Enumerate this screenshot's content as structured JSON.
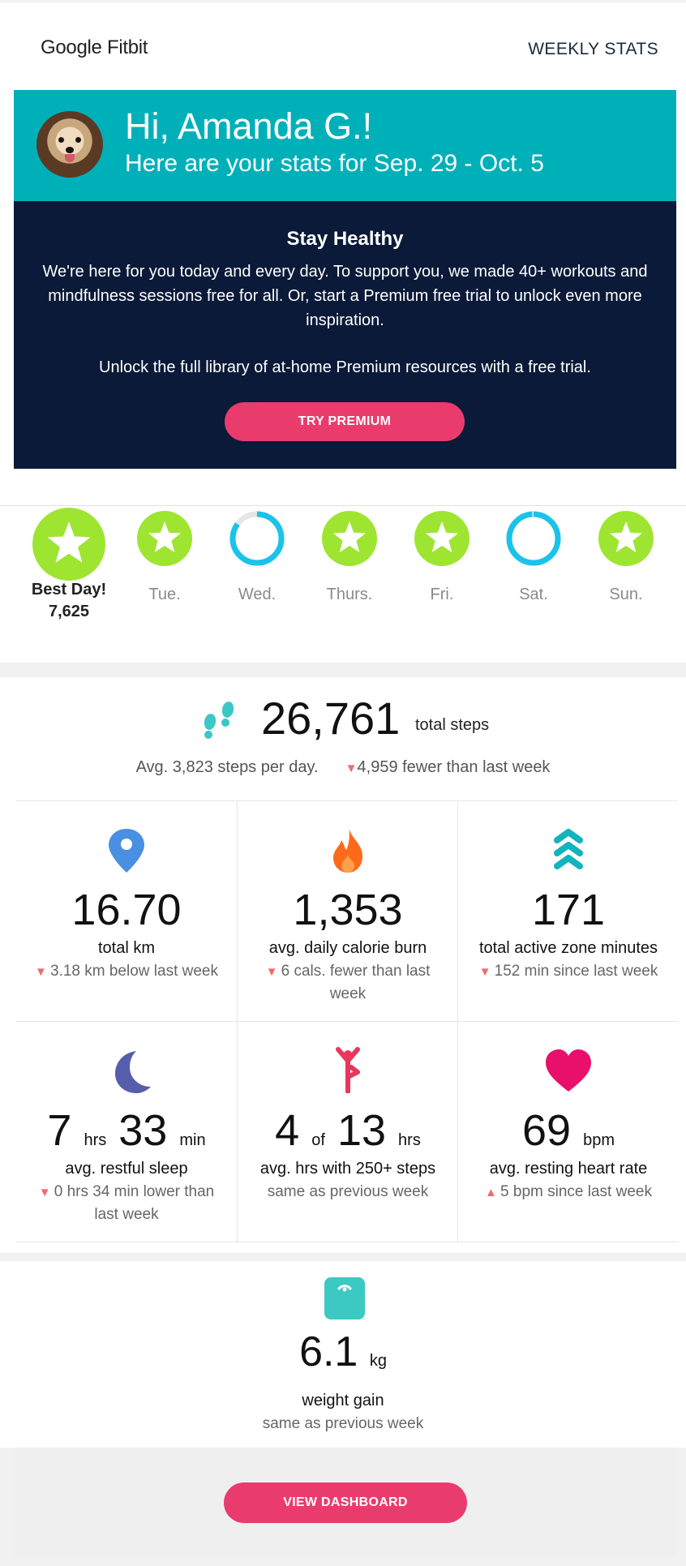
{
  "brand": "Google Fitbit",
  "header_link": "WEEKLY STATS",
  "greeting": "Hi, Amanda G.!",
  "subtitle": "Here are your stats for Sep. 29 - Oct. 5",
  "promo": {
    "title": "Stay Healthy",
    "text1": "We're here for you today and every day. To support you, we made 40+ workouts and mindfulness sessions free for all. Or, start a Premium free trial to unlock even more inspiration.",
    "text2": "Unlock the full library of at-home Premium resources with a free trial.",
    "button": "TRY PREMIUM"
  },
  "days": [
    {
      "label": "Best Day!",
      "value": "7,625",
      "status": "goal-met",
      "best": true
    },
    {
      "label": "Tue.",
      "status": "goal-met"
    },
    {
      "label": "Wed.",
      "status": "progress",
      "progress": 0.85
    },
    {
      "label": "Thurs.",
      "status": "goal-met"
    },
    {
      "label": "Fri.",
      "status": "goal-met"
    },
    {
      "label": "Sat.",
      "status": "progress",
      "progress": 0.99
    },
    {
      "label": "Sun.",
      "status": "goal-met"
    }
  ],
  "steps": {
    "total": "26,761",
    "label": "total steps",
    "avg": "Avg. 3,823 steps per day.",
    "change": "4,959 fewer than last week"
  },
  "stats": [
    {
      "icon": "location-pin-icon",
      "value": "16.70",
      "name": "total km",
      "change": "3.18 km below last week",
      "dir": "down"
    },
    {
      "icon": "flame-icon",
      "value": "1,353",
      "name": "avg. daily calorie burn",
      "change": "6 cals. fewer than last week",
      "dir": "down"
    },
    {
      "icon": "chevrons-up-icon",
      "value": "171",
      "name": "total active zone minutes",
      "change": "152 min since last week",
      "dir": "down"
    },
    {
      "icon": "moon-icon",
      "v1": "7",
      "u1": "hrs",
      "v2": "33",
      "u2": "min",
      "name": "avg. restful sleep",
      "change": "0 hrs 34 min lower than last week",
      "dir": "down"
    },
    {
      "icon": "stretching-person-icon",
      "v1": "4",
      "u1": "of",
      "v2": "13",
      "u2": "hrs",
      "name": "avg. hrs with 250+ steps",
      "change": "same as previous week",
      "dir": "none"
    },
    {
      "icon": "heart-icon",
      "v1": "69",
      "u1": "bpm",
      "name": "avg. resting heart rate",
      "change": "5 bpm since last week",
      "dir": "up"
    }
  ],
  "weight": {
    "icon": "scale-icon",
    "value": "6.1",
    "unit": "kg",
    "name": "weight gain",
    "change": "same as previous week"
  },
  "footer_button": "VIEW DASHBOARD",
  "colors": {
    "teal": "#00b0b9",
    "navy": "#0b1a38",
    "pink": "#ea3b6d",
    "goal_green": "#9ee531",
    "ring_cyan": "#19c3ea"
  }
}
